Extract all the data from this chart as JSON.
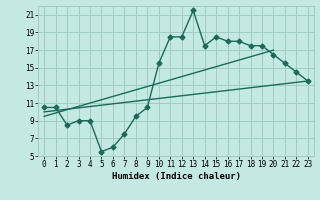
{
  "title": "",
  "xlabel": "Humidex (Indice chaleur)",
  "xlim": [
    -0.5,
    23.5
  ],
  "ylim": [
    5,
    22
  ],
  "yticks": [
    5,
    7,
    9,
    11,
    13,
    15,
    17,
    19,
    21
  ],
  "xticks": [
    0,
    1,
    2,
    3,
    4,
    5,
    6,
    7,
    8,
    9,
    10,
    11,
    12,
    13,
    14,
    15,
    16,
    17,
    18,
    19,
    20,
    21,
    22,
    23
  ],
  "background_color": "#c4e8e2",
  "grid_color": "#9ecdc4",
  "line_color": "#1a6b5a",
  "line1_x": [
    0,
    1,
    2,
    3,
    4,
    5,
    6,
    7,
    8,
    9,
    10,
    11,
    12,
    13,
    14,
    15,
    16,
    17,
    18,
    19,
    20,
    21,
    22,
    23
  ],
  "line1_y": [
    10.5,
    10.5,
    8.5,
    9.0,
    9.0,
    5.5,
    6.0,
    7.5,
    9.5,
    10.5,
    15.5,
    18.5,
    18.5,
    21.5,
    17.5,
    18.5,
    18.0,
    18.0,
    17.5,
    17.5,
    16.5,
    15.5,
    14.5,
    13.5
  ],
  "line2_x": [
    0,
    23
  ],
  "line2_y": [
    10.0,
    13.5
  ],
  "line3_x": [
    0,
    20
  ],
  "line3_y": [
    9.5,
    17.0
  ],
  "marker": "D",
  "marker_size": 2.5,
  "line_width": 1.0,
  "font_size_tick": 5.5,
  "font_size_label": 6.5
}
